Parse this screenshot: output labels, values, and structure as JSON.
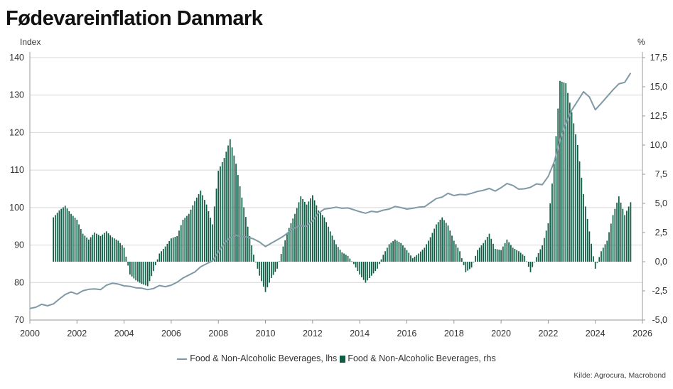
{
  "chart_data": {
    "type": "line+bar",
    "title": "Fødevareinflation Danmark",
    "left_unit": "Index",
    "right_unit": "%",
    "x_range": [
      2000,
      2026
    ],
    "x_ticks": [
      "2000",
      "2002",
      "2004",
      "2006",
      "2008",
      "2010",
      "2012",
      "2014",
      "2016",
      "2018",
      "2020",
      "2022",
      "2024",
      "2026"
    ],
    "left_axis": {
      "range": [
        70,
        140
      ],
      "ticks": [
        "70",
        "80",
        "90",
        "100",
        "110",
        "120",
        "130",
        "140"
      ]
    },
    "right_axis": {
      "range": [
        -5,
        17.5
      ],
      "ticks": [
        "-5,0",
        "-2,5",
        "0,0",
        "2,5",
        "5,0",
        "7,5",
        "10,0",
        "12,5",
        "15,0",
        "17,5"
      ]
    },
    "series": [
      {
        "name": "Food & Non-Alcoholic Beverages, lhs",
        "kind": "line",
        "axis": "left",
        "color": "#7f9aa6",
        "points": [
          [
            2000.0,
            73.1
          ],
          [
            2000.25,
            73.4
          ],
          [
            2000.5,
            74.2
          ],
          [
            2000.75,
            73.8
          ],
          [
            2001.0,
            74.3
          ],
          [
            2001.25,
            75.6
          ],
          [
            2001.5,
            76.8
          ],
          [
            2001.75,
            77.5
          ],
          [
            2002.0,
            76.9
          ],
          [
            2002.25,
            77.8
          ],
          [
            2002.5,
            78.2
          ],
          [
            2002.75,
            78.3
          ],
          [
            2003.0,
            78.1
          ],
          [
            2003.25,
            79.3
          ],
          [
            2003.5,
            79.8
          ],
          [
            2003.75,
            79.6
          ],
          [
            2004.0,
            79.1
          ],
          [
            2004.25,
            79.0
          ],
          [
            2004.5,
            78.6
          ],
          [
            2004.75,
            78.5
          ],
          [
            2005.0,
            78.1
          ],
          [
            2005.25,
            78.4
          ],
          [
            2005.5,
            79.2
          ],
          [
            2005.75,
            78.9
          ],
          [
            2006.0,
            79.3
          ],
          [
            2006.25,
            80.1
          ],
          [
            2006.5,
            81.2
          ],
          [
            2006.75,
            82.0
          ],
          [
            2007.0,
            82.8
          ],
          [
            2007.25,
            84.2
          ],
          [
            2007.5,
            85.0
          ],
          [
            2007.75,
            85.8
          ],
          [
            2008.0,
            88.1
          ],
          [
            2008.25,
            90.5
          ],
          [
            2008.5,
            92.0
          ],
          [
            2008.75,
            92.6
          ],
          [
            2009.0,
            92.3
          ],
          [
            2009.25,
            92.1
          ],
          [
            2009.5,
            91.6
          ],
          [
            2009.75,
            90.8
          ],
          [
            2010.0,
            89.6
          ],
          [
            2010.25,
            90.5
          ],
          [
            2010.5,
            91.4
          ],
          [
            2010.75,
            92.3
          ],
          [
            2011.0,
            93.5
          ],
          [
            2011.25,
            94.6
          ],
          [
            2011.5,
            95.2
          ],
          [
            2011.75,
            95.0
          ],
          [
            2012.0,
            96.5
          ],
          [
            2012.25,
            98.5
          ],
          [
            2012.5,
            99.6
          ],
          [
            2012.75,
            99.8
          ],
          [
            2013.0,
            100.1
          ],
          [
            2013.25,
            99.8
          ],
          [
            2013.5,
            99.9
          ],
          [
            2013.75,
            99.4
          ],
          [
            2014.0,
            98.9
          ],
          [
            2014.25,
            98.5
          ],
          [
            2014.5,
            99.0
          ],
          [
            2014.75,
            98.8
          ],
          [
            2015.0,
            99.3
          ],
          [
            2015.25,
            99.6
          ],
          [
            2015.5,
            100.3
          ],
          [
            2015.75,
            100.0
          ],
          [
            2016.0,
            99.6
          ],
          [
            2016.25,
            99.8
          ],
          [
            2016.5,
            100.1
          ],
          [
            2016.75,
            100.2
          ],
          [
            2017.0,
            101.3
          ],
          [
            2017.25,
            102.4
          ],
          [
            2017.5,
            102.8
          ],
          [
            2017.75,
            103.8
          ],
          [
            2018.0,
            103.2
          ],
          [
            2018.25,
            103.5
          ],
          [
            2018.5,
            103.4
          ],
          [
            2018.75,
            103.8
          ],
          [
            2019.0,
            104.3
          ],
          [
            2019.25,
            104.6
          ],
          [
            2019.5,
            105.1
          ],
          [
            2019.75,
            104.4
          ],
          [
            2020.0,
            105.3
          ],
          [
            2020.25,
            106.4
          ],
          [
            2020.5,
            105.9
          ],
          [
            2020.75,
            104.9
          ],
          [
            2021.0,
            105.0
          ],
          [
            2021.25,
            105.4
          ],
          [
            2021.5,
            106.3
          ],
          [
            2021.75,
            106.1
          ],
          [
            2022.0,
            108.3
          ],
          [
            2022.25,
            112.1
          ],
          [
            2022.5,
            118.0
          ],
          [
            2022.75,
            122.3
          ],
          [
            2023.0,
            126.0
          ],
          [
            2023.25,
            128.4
          ],
          [
            2023.5,
            130.9
          ],
          [
            2023.75,
            129.5
          ],
          [
            2024.0,
            126.1
          ],
          [
            2024.25,
            127.8
          ],
          [
            2024.5,
            129.6
          ],
          [
            2024.75,
            131.4
          ],
          [
            2025.0,
            133.0
          ],
          [
            2025.25,
            133.4
          ],
          [
            2025.5,
            135.9
          ]
        ]
      },
      {
        "name": "Food & Non-Alcoholic Beverages, rhs",
        "kind": "bar",
        "axis": "right",
        "color": "#0d5e45",
        "points": [
          [
            2001.0,
            3.8
          ],
          [
            2001.25,
            4.4
          ],
          [
            2001.5,
            4.8
          ],
          [
            2001.75,
            4.1
          ],
          [
            2002.0,
            3.6
          ],
          [
            2002.25,
            2.4
          ],
          [
            2002.5,
            1.9
          ],
          [
            2002.75,
            2.5
          ],
          [
            2003.0,
            2.2
          ],
          [
            2003.25,
            2.6
          ],
          [
            2003.5,
            2.1
          ],
          [
            2003.75,
            1.8
          ],
          [
            2004.0,
            1.2
          ],
          [
            2004.25,
            -1.1
          ],
          [
            2004.5,
            -1.6
          ],
          [
            2004.75,
            -1.9
          ],
          [
            2005.0,
            -2.1
          ],
          [
            2005.25,
            -0.8
          ],
          [
            2005.5,
            0.7
          ],
          [
            2005.75,
            1.3
          ],
          [
            2006.0,
            2.0
          ],
          [
            2006.25,
            2.2
          ],
          [
            2006.5,
            3.6
          ],
          [
            2006.75,
            4.1
          ],
          [
            2007.0,
            5.2
          ],
          [
            2007.25,
            6.1
          ],
          [
            2007.5,
            4.9
          ],
          [
            2007.75,
            3.2
          ],
          [
            2008.0,
            7.8
          ],
          [
            2008.25,
            8.9
          ],
          [
            2008.5,
            10.5
          ],
          [
            2008.75,
            8.4
          ],
          [
            2009.0,
            5.5
          ],
          [
            2009.25,
            3.0
          ],
          [
            2009.5,
            0.6
          ],
          [
            2009.75,
            -1.2
          ],
          [
            2010.0,
            -2.6
          ],
          [
            2010.25,
            -1.4
          ],
          [
            2010.5,
            -0.6
          ],
          [
            2010.75,
            1.3
          ],
          [
            2011.0,
            2.9
          ],
          [
            2011.25,
            4.1
          ],
          [
            2011.5,
            5.6
          ],
          [
            2011.75,
            4.9
          ],
          [
            2012.0,
            5.7
          ],
          [
            2012.25,
            4.4
          ],
          [
            2012.5,
            3.8
          ],
          [
            2012.75,
            2.6
          ],
          [
            2013.0,
            1.5
          ],
          [
            2013.25,
            0.8
          ],
          [
            2013.5,
            0.5
          ],
          [
            2013.75,
            -0.2
          ],
          [
            2014.0,
            -1.1
          ],
          [
            2014.25,
            -1.8
          ],
          [
            2014.5,
            -1.2
          ],
          [
            2014.75,
            -0.6
          ],
          [
            2015.0,
            0.6
          ],
          [
            2015.25,
            1.5
          ],
          [
            2015.5,
            1.9
          ],
          [
            2015.75,
            1.6
          ],
          [
            2016.0,
            1.0
          ],
          [
            2016.25,
            0.3
          ],
          [
            2016.5,
            0.7
          ],
          [
            2016.75,
            1.2
          ],
          [
            2017.0,
            2.1
          ],
          [
            2017.25,
            3.2
          ],
          [
            2017.5,
            3.8
          ],
          [
            2017.75,
            3.1
          ],
          [
            2018.0,
            1.8
          ],
          [
            2018.25,
            0.9
          ],
          [
            2018.5,
            -0.9
          ],
          [
            2018.75,
            -0.5
          ],
          [
            2019.0,
            1.0
          ],
          [
            2019.25,
            1.6
          ],
          [
            2019.5,
            2.4
          ],
          [
            2019.75,
            1.1
          ],
          [
            2020.0,
            1.0
          ],
          [
            2020.25,
            1.9
          ],
          [
            2020.5,
            1.2
          ],
          [
            2020.75,
            0.9
          ],
          [
            2021.0,
            0.5
          ],
          [
            2021.25,
            -0.9
          ],
          [
            2021.5,
            0.4
          ],
          [
            2021.75,
            1.4
          ],
          [
            2022.0,
            3.3
          ],
          [
            2022.25,
            8.4
          ],
          [
            2022.5,
            15.5
          ],
          [
            2022.75,
            15.3
          ],
          [
            2023.0,
            12.8
          ],
          [
            2023.25,
            10.0
          ],
          [
            2023.5,
            5.8
          ],
          [
            2023.75,
            2.6
          ],
          [
            2024.0,
            -0.6
          ],
          [
            2024.25,
            0.9
          ],
          [
            2024.5,
            1.8
          ],
          [
            2024.75,
            4.0
          ],
          [
            2025.0,
            5.6
          ],
          [
            2025.25,
            4.0
          ],
          [
            2025.5,
            5.1
          ]
        ]
      }
    ],
    "legend": {
      "line_label": "Food & Non-Alcoholic Beverages, lhs",
      "bar_label": "Food & Non-Alcoholic Beverages, rhs",
      "placement": "bottom-center"
    },
    "source": "Kilde: Agrocura, Macrobond"
  }
}
